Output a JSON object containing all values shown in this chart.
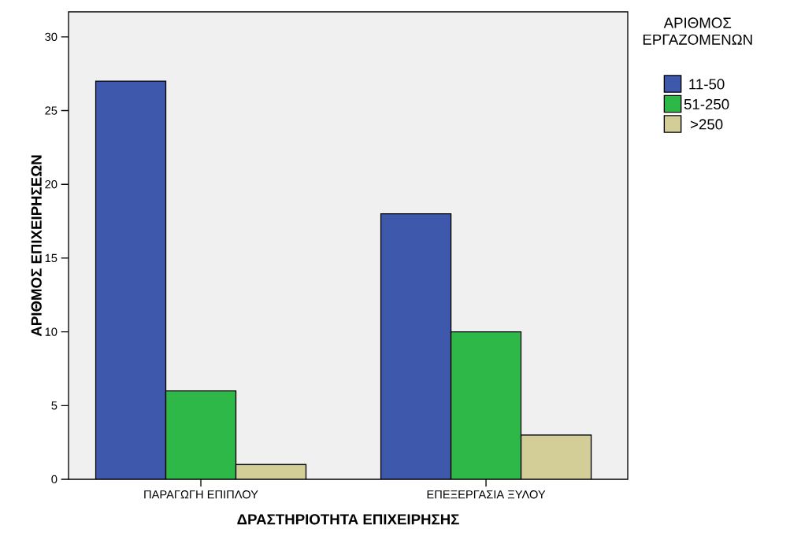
{
  "chart_data": {
    "type": "bar",
    "xlabel": "ΔΡΑΣΤΗΡΙΟΤΗΤΑ ΕΠΙΧΕΙΡΗΣΗΣ",
    "ylabel": "ΑΡΙΘΜΟΣ ΕΠΙΧΕΙΡΗΣΕΩΝ",
    "legend_title": "ΑΡΙΘΜΟΣ ΕΡΓΑΖΟΜΕΝΩΝ",
    "categories": [
      "ΠΑΡΑΓΩΓΗ ΕΠΙΠΛΟΥ",
      "ΕΠΕΞΕΡΓΑΣΙΑ ΞΥΛΟΥ"
    ],
    "series": [
      {
        "name": "11-50",
        "color": "#3e58ac",
        "values": [
          27,
          18
        ]
      },
      {
        "name": "51-250",
        "color": "#2eb848",
        "values": [
          6,
          10
        ]
      },
      {
        "name": ">250",
        "color": "#d3ce97",
        "values": [
          1,
          3
        ]
      }
    ],
    "ylim": [
      0,
      31.7
    ],
    "yticks": [
      0,
      5,
      10,
      15,
      20,
      25,
      30
    ],
    "grid": false,
    "legend": "top right"
  }
}
